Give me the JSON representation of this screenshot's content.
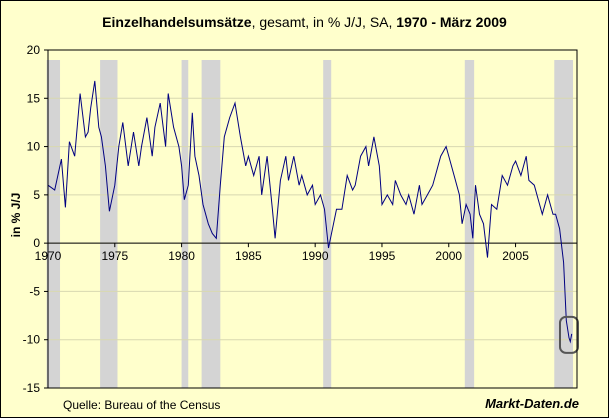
{
  "chart_data": {
    "type": "line",
    "title_bold": "Einzelhandelsumsätze",
    "title_rest": ", gesamt, in % J/J, SA, ",
    "title_period": "1970 -  März 2009",
    "ylabel": "in % J/J",
    "source": "Quelle: Bureau of the Census",
    "brand": "Markt-Daten.de",
    "xlim": [
      1970,
      2009.6
    ],
    "ylim": [
      -15,
      20
    ],
    "yticks": [
      -15,
      -10,
      -5,
      0,
      5,
      10,
      15,
      20
    ],
    "xticks": [
      1970,
      1975,
      1980,
      1985,
      1990,
      1995,
      2000,
      2005
    ],
    "line_color": "#000080",
    "recession_color": "#d4d4d4",
    "grid": "horizontal",
    "recessions": [
      [
        1969.9,
        1970.9
      ],
      [
        1973.9,
        1975.2
      ],
      [
        1980.0,
        1980.5
      ],
      [
        1981.5,
        1982.9
      ],
      [
        1990.6,
        1991.2
      ],
      [
        2001.2,
        2001.9
      ],
      [
        2007.9,
        2009.3
      ]
    ],
    "highlight_at": [
      2009.0,
      -9.5
    ],
    "x": [
      1970.0,
      1970.5,
      1971.0,
      1971.3,
      1971.6,
      1972.0,
      1972.4,
      1972.8,
      1973.0,
      1973.2,
      1973.5,
      1973.8,
      1974.0,
      1974.3,
      1974.6,
      1975.0,
      1975.3,
      1975.6,
      1976.0,
      1976.4,
      1976.8,
      1977.0,
      1977.4,
      1977.8,
      1978.0,
      1978.4,
      1978.8,
      1979.0,
      1979.4,
      1979.8,
      1980.0,
      1980.2,
      1980.5,
      1980.8,
      1981.0,
      1981.3,
      1981.6,
      1982.0,
      1982.3,
      1982.6,
      1982.9,
      1983.2,
      1983.6,
      1984.0,
      1984.4,
      1984.8,
      1985.0,
      1985.4,
      1985.8,
      1986.0,
      1986.4,
      1986.8,
      1987.0,
      1987.4,
      1987.8,
      1988.0,
      1988.4,
      1988.8,
      1989.0,
      1989.4,
      1989.8,
      1990.0,
      1990.4,
      1990.7,
      1991.0,
      1991.3,
      1991.6,
      1992.0,
      1992.4,
      1992.8,
      1993.0,
      1993.4,
      1993.8,
      1994.0,
      1994.4,
      1994.8,
      1995.0,
      1995.4,
      1995.8,
      1996.0,
      1996.4,
      1996.8,
      1997.0,
      1997.4,
      1997.8,
      1998.0,
      1998.4,
      1998.8,
      1999.0,
      1999.4,
      1999.8,
      2000.0,
      2000.4,
      2000.8,
      2001.0,
      2001.3,
      2001.6,
      2001.8,
      2002.0,
      2002.3,
      2002.6,
      2002.9,
      2003.2,
      2003.6,
      2004.0,
      2004.4,
      2004.8,
      2005.0,
      2005.4,
      2005.8,
      2006.0,
      2006.4,
      2006.8,
      2007.0,
      2007.4,
      2007.8,
      2008.0,
      2008.3,
      2008.6,
      2008.8,
      2009.0,
      2009.1,
      2009.2
    ],
    "y": [
      6.0,
      5.5,
      8.7,
      3.7,
      10.5,
      9.0,
      15.5,
      11.0,
      11.5,
      14.0,
      16.8,
      12.0,
      11.0,
      8.0,
      3.3,
      6.0,
      10.0,
      12.5,
      8.0,
      11.5,
      8.0,
      10.0,
      13.0,
      9.0,
      12.0,
      14.5,
      10.0,
      15.5,
      12.0,
      10.0,
      8.0,
      4.5,
      6.0,
      13.5,
      9.0,
      7.0,
      4.0,
      2.0,
      1.0,
      0.5,
      6.0,
      11.0,
      13.0,
      14.5,
      11.0,
      8.0,
      9.0,
      7.0,
      9.0,
      5.0,
      9.0,
      3.5,
      0.5,
      6.5,
      9.0,
      6.5,
      9.0,
      6.0,
      7.0,
      5.0,
      6.0,
      4.0,
      5.0,
      3.5,
      -0.5,
      1.5,
      3.5,
      3.5,
      7.0,
      5.5,
      6.0,
      9.0,
      10.0,
      8.0,
      11.0,
      8.0,
      4.0,
      5.0,
      4.0,
      6.5,
      5.0,
      4.0,
      5.0,
      3.0,
      6.0,
      4.0,
      5.0,
      6.0,
      7.0,
      9.0,
      10.0,
      9.0,
      7.0,
      5.0,
      2.0,
      4.0,
      3.0,
      0.5,
      6.0,
      3.0,
      2.0,
      -1.5,
      4.0,
      3.5,
      7.0,
      6.0,
      8.0,
      8.5,
      7.0,
      9.0,
      6.5,
      6.0,
      4.0,
      3.0,
      5.0,
      3.0,
      3.0,
      1.5,
      -2.0,
      -8.0,
      -9.8,
      -10.2,
      -9.4
    ]
  }
}
